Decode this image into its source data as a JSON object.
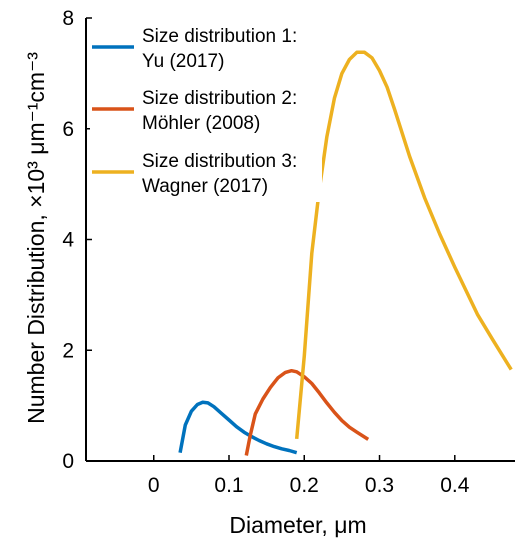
{
  "chart_data": {
    "type": "line",
    "xlabel": "Diameter, μm",
    "ylabel": "Number Distribution, ×10³ μm⁻¹cm⁻³",
    "xlim": [
      -0.09,
      0.48
    ],
    "ylim": [
      0,
      8
    ],
    "xticks": [
      "0",
      "0.1",
      "0.2",
      "0.3",
      "0.4"
    ],
    "xtick_values": [
      0,
      0.1,
      0.2,
      0.3,
      0.4
    ],
    "yticks": [
      "0",
      "2",
      "4",
      "6",
      "8"
    ],
    "ytick_values": [
      0,
      2,
      4,
      6,
      8
    ],
    "grid": false,
    "legend_position": "top-left",
    "series": [
      {
        "name_line1": "Size distribution 1:",
        "name_line2": "Yu (2017)",
        "color": "#0072BD",
        "x": [
          0.035,
          0.042,
          0.05,
          0.058,
          0.065,
          0.072,
          0.08,
          0.09,
          0.1,
          0.11,
          0.12,
          0.13,
          0.14,
          0.15,
          0.16,
          0.17,
          0.18,
          0.19
        ],
        "y": [
          0.15,
          0.65,
          0.9,
          1.02,
          1.06,
          1.05,
          0.98,
          0.86,
          0.74,
          0.62,
          0.52,
          0.44,
          0.37,
          0.31,
          0.26,
          0.22,
          0.19,
          0.15
        ]
      },
      {
        "name_line1": "Size distribution 2:",
        "name_line2": "Möhler (2008)",
        "color": "#D95319",
        "x": [
          0.123,
          0.128,
          0.135,
          0.145,
          0.155,
          0.165,
          0.175,
          0.183,
          0.19,
          0.2,
          0.21,
          0.22,
          0.23,
          0.24,
          0.25,
          0.26,
          0.27,
          0.285
        ],
        "y": [
          0.1,
          0.45,
          0.85,
          1.12,
          1.33,
          1.5,
          1.6,
          1.63,
          1.61,
          1.52,
          1.4,
          1.23,
          1.05,
          0.88,
          0.73,
          0.61,
          0.52,
          0.39
        ]
      },
      {
        "name_line1": "Size distribution 3:",
        "name_line2": "Wagner (2017)",
        "color": "#EDB120",
        "x": [
          0.19,
          0.2,
          0.21,
          0.22,
          0.23,
          0.24,
          0.25,
          0.26,
          0.27,
          0.28,
          0.29,
          0.3,
          0.31,
          0.32,
          0.34,
          0.36,
          0.38,
          0.4,
          0.43,
          0.45,
          0.475
        ],
        "y": [
          0.4,
          1.9,
          3.75,
          4.9,
          5.85,
          6.55,
          7.0,
          7.25,
          7.38,
          7.38,
          7.28,
          7.05,
          6.75,
          6.35,
          5.5,
          4.75,
          4.1,
          3.5,
          2.65,
          2.2,
          1.65
        ]
      }
    ]
  }
}
